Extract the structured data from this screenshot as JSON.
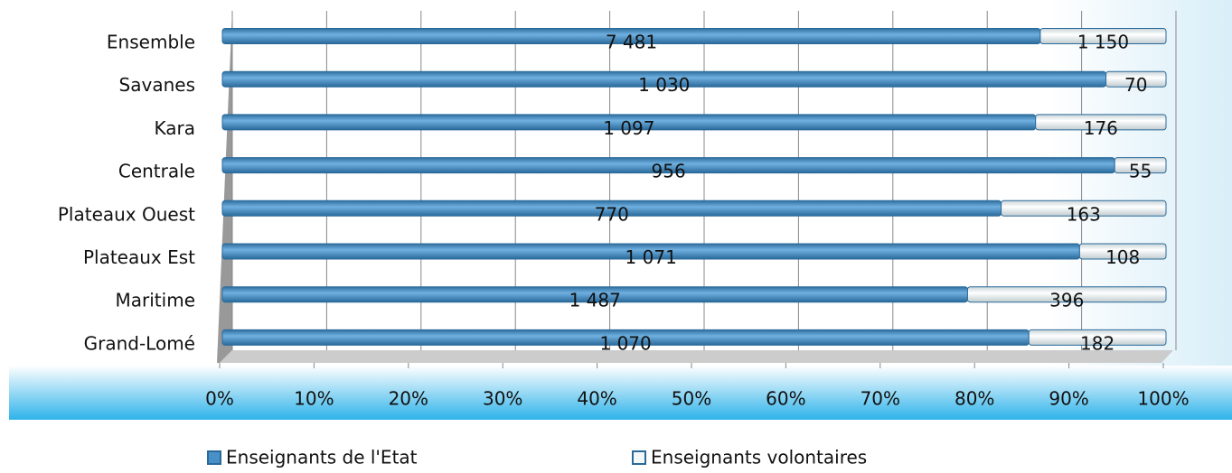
{
  "chart_data": {
    "type": "stacked_barh_percent",
    "categories": [
      "Ensemble",
      "Savanes",
      "Kara",
      "Centrale",
      "Plateaux Ouest",
      "Plateaux Est",
      "Maritime",
      "Grand-Lomé"
    ],
    "series": [
      {
        "name": "Enseignants de l'Etat",
        "color": "#4a90c8",
        "values": [
          7481,
          1030,
          1097,
          956,
          770,
          1071,
          1487,
          1070
        ],
        "value_labels": [
          "7 481",
          "1 030",
          "1 097",
          "956",
          "770",
          "1 071",
          "1 487",
          "1 070"
        ]
      },
      {
        "name": "Enseignants volontaires",
        "color": "#f4f7f8",
        "values": [
          1150,
          70,
          176,
          55,
          163,
          108,
          396,
          182
        ],
        "value_labels": [
          "1 150",
          "70",
          "176",
          "55",
          "163",
          "108",
          "396",
          "182"
        ]
      }
    ],
    "xlim": [
      0,
      100
    ],
    "xticks": [
      {
        "value": 0,
        "label": "0%"
      },
      {
        "value": 10,
        "label": "10%"
      },
      {
        "value": 20,
        "label": "20%"
      },
      {
        "value": 30,
        "label": "30%"
      },
      {
        "value": 40,
        "label": "40%"
      },
      {
        "value": 50,
        "label": "50%"
      },
      {
        "value": 60,
        "label": "60%"
      },
      {
        "value": 70,
        "label": "70%"
      },
      {
        "value": 80,
        "label": "80%"
      },
      {
        "value": 90,
        "label": "90%"
      },
      {
        "value": 100,
        "label": "100%"
      }
    ],
    "grid": true
  }
}
